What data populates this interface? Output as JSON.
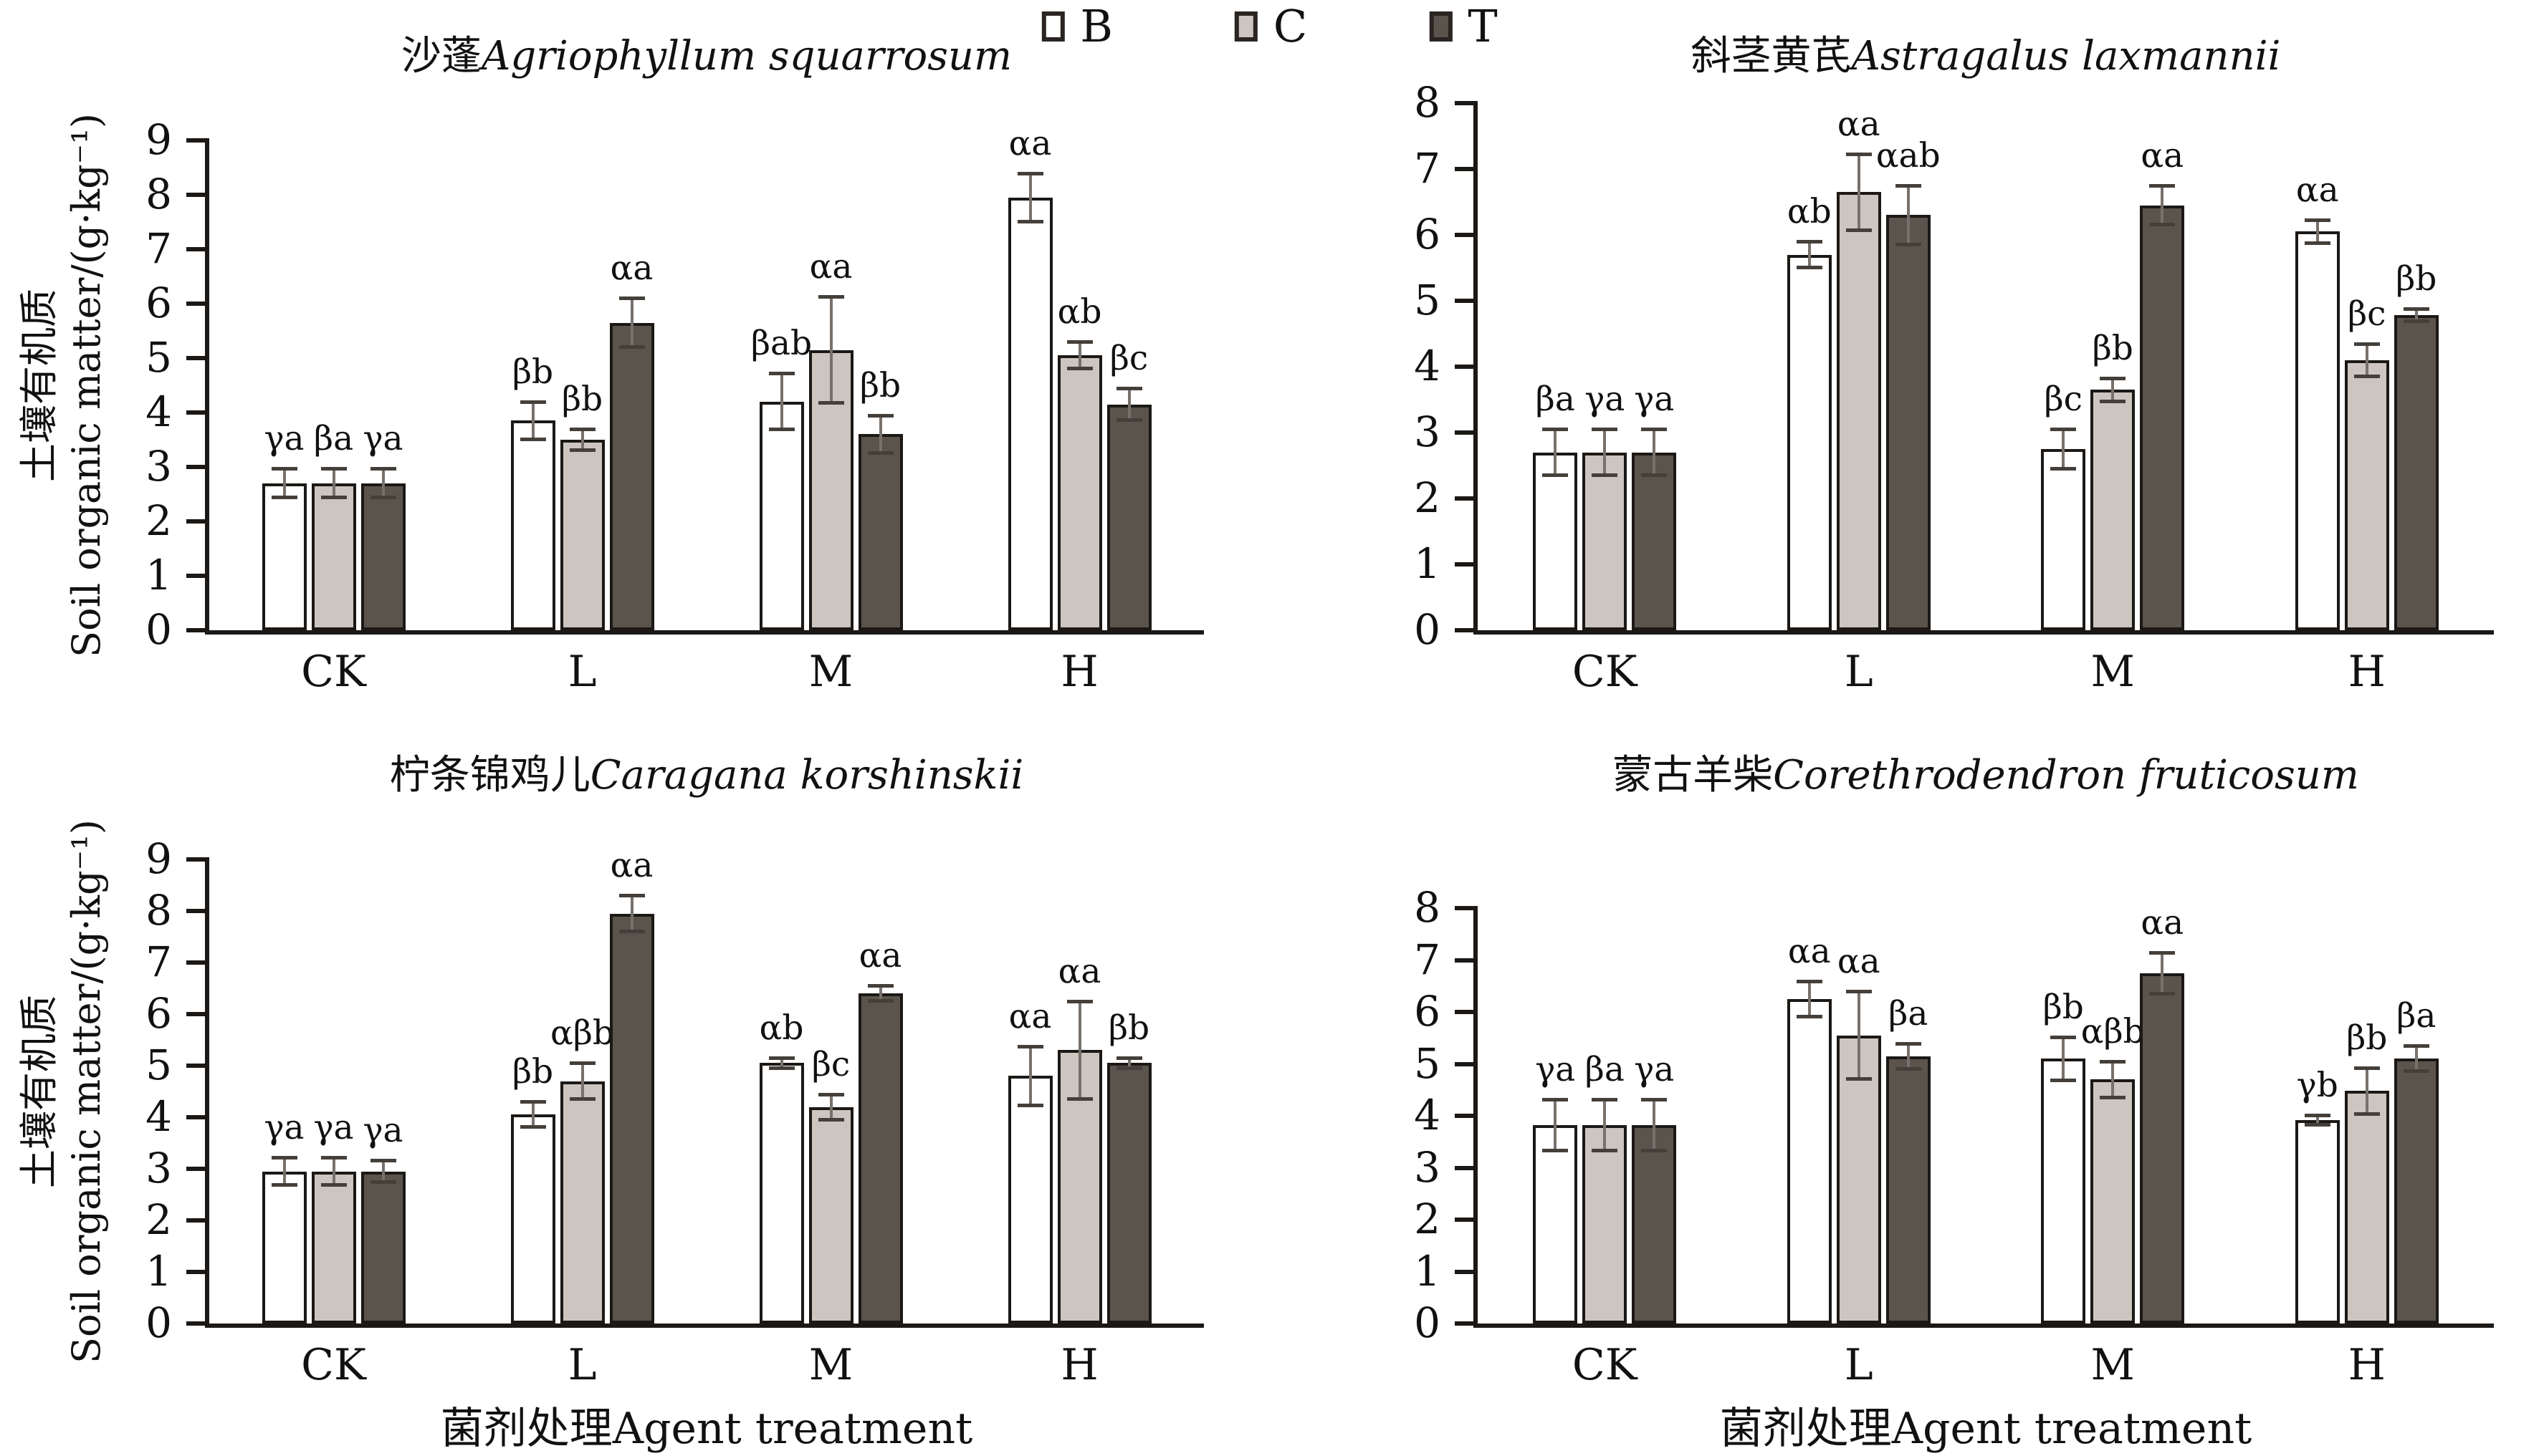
{
  "figure": {
    "legend": [
      {
        "label": "B",
        "fill": "#ffffff"
      },
      {
        "label": "C",
        "fill": "#ccc5c0"
      },
      {
        "label": "T",
        "fill": "#5b544d"
      }
    ],
    "x_axis_title": "菌剂处理Agent treatment",
    "y_axis_label_cn": "土壤有机质",
    "y_axis_label_en": "Soil organic matter/(g·kg⁻¹)"
  },
  "chart_data": [
    {
      "type": "bar",
      "title_cn": "沙蓬",
      "title_latin": "Agriophyllum squarrosum",
      "categories": [
        "CK",
        "L",
        "M",
        "H"
      ],
      "ylim": [
        0,
        9
      ],
      "yticks": [
        0,
        1,
        2,
        3,
        4,
        5,
        6,
        7,
        8,
        9
      ],
      "show_y_label": true,
      "show_x_title": false,
      "series": [
        {
          "name": "B",
          "values": [
            2.7,
            3.85,
            4.2,
            7.95
          ],
          "errors": [
            0.27,
            0.35,
            0.52,
            0.45
          ],
          "labels": [
            "γa",
            "βb",
            "βab",
            "αa"
          ]
        },
        {
          "name": "C",
          "values": [
            2.7,
            3.5,
            5.15,
            5.05
          ],
          "errors": [
            0.27,
            0.2,
            0.98,
            0.25
          ],
          "labels": [
            "βa",
            "βb",
            "αa",
            "αb"
          ]
        },
        {
          "name": "T",
          "values": [
            2.7,
            5.65,
            3.6,
            4.15
          ],
          "errors": [
            0.27,
            0.45,
            0.35,
            0.3
          ],
          "labels": [
            "γa",
            "αa",
            "βb",
            "βc"
          ]
        }
      ]
    },
    {
      "type": "bar",
      "title_cn": "斜茎黄芪",
      "title_latin": "Astragalus laxmannii",
      "categories": [
        "CK",
        "L",
        "M",
        "H"
      ],
      "ylim": [
        0,
        8
      ],
      "yticks": [
        0,
        1,
        2,
        3,
        4,
        5,
        6,
        7,
        8
      ],
      "show_y_label": false,
      "show_x_title": false,
      "series": [
        {
          "name": "B",
          "values": [
            2.7,
            5.7,
            2.75,
            6.05
          ],
          "errors": [
            0.35,
            0.2,
            0.3,
            0.18
          ],
          "labels": [
            "βa",
            "αb",
            "βc",
            "αa"
          ]
        },
        {
          "name": "C",
          "values": [
            2.7,
            6.65,
            3.65,
            4.1
          ],
          "errors": [
            0.35,
            0.58,
            0.18,
            0.25
          ],
          "labels": [
            "γa",
            "αa",
            "βb",
            "βc"
          ]
        },
        {
          "name": "T",
          "values": [
            2.7,
            6.3,
            6.45,
            4.78
          ],
          "errors": [
            0.35,
            0.45,
            0.3,
            0.1
          ],
          "labels": [
            "γa",
            "αab",
            "αa",
            "βb"
          ]
        }
      ]
    },
    {
      "type": "bar",
      "title_cn": "柠条锦鸡儿",
      "title_latin": "Caragana korshinskii",
      "categories": [
        "CK",
        "L",
        "M",
        "H"
      ],
      "ylim": [
        0,
        9
      ],
      "yticks": [
        0,
        1,
        2,
        3,
        4,
        5,
        6,
        7,
        8,
        9
      ],
      "show_y_label": true,
      "show_x_title": true,
      "series": [
        {
          "name": "B",
          "values": [
            2.95,
            4.05,
            5.05,
            4.8
          ],
          "errors": [
            0.27,
            0.25,
            0.1,
            0.58
          ],
          "labels": [
            "γa",
            "βb",
            "αb",
            "αa"
          ]
        },
        {
          "name": "C",
          "values": [
            2.95,
            4.7,
            4.2,
            5.3
          ],
          "errors": [
            0.27,
            0.35,
            0.25,
            0.95
          ],
          "labels": [
            "γa",
            "αβb",
            "βc",
            "αa"
          ]
        },
        {
          "name": "T",
          "values": [
            2.95,
            7.95,
            6.4,
            5.05
          ],
          "errors": [
            0.22,
            0.35,
            0.15,
            0.1
          ],
          "labels": [
            "γa",
            "αa",
            "αa",
            "βb"
          ]
        }
      ]
    },
    {
      "type": "bar",
      "title_cn": "蒙古羊柴",
      "title_latin": "Corethrodendron fruticosum",
      "categories": [
        "CK",
        "L",
        "M",
        "H"
      ],
      "ylim": [
        0,
        8
      ],
      "yticks": [
        0,
        1,
        2,
        3,
        4,
        5,
        6,
        7,
        8
      ],
      "show_y_label": false,
      "show_x_title": true,
      "series": [
        {
          "name": "B",
          "values": [
            3.82,
            6.25,
            5.1,
            3.92
          ],
          "errors": [
            0.5,
            0.35,
            0.42,
            0.1
          ],
          "labels": [
            "γa",
            "αa",
            "βb",
            "γb"
          ]
        },
        {
          "name": "C",
          "values": [
            3.82,
            5.55,
            4.7,
            4.48
          ],
          "errors": [
            0.5,
            0.85,
            0.35,
            0.45
          ],
          "labels": [
            "βa",
            "αa",
            "αβb",
            "βb"
          ]
        },
        {
          "name": "T",
          "values": [
            3.82,
            5.15,
            6.75,
            5.1
          ],
          "errors": [
            0.5,
            0.25,
            0.4,
            0.25
          ],
          "labels": [
            "γa",
            "βa",
            "αa",
            "βa"
          ]
        }
      ]
    }
  ]
}
